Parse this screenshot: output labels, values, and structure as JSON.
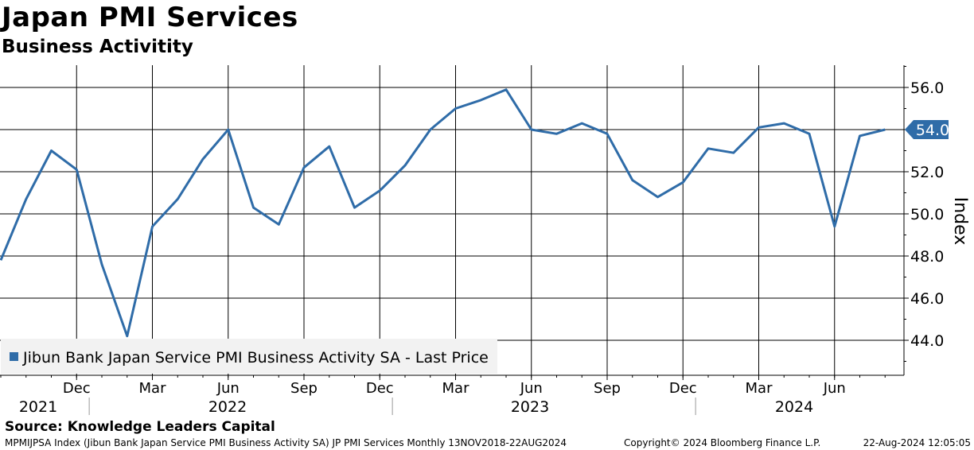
{
  "header": {
    "title": "Japan PMI Services",
    "subtitle": "Business Activitity"
  },
  "chart_data": {
    "type": "line",
    "title": "Japan PMI Services",
    "subtitle": "Business Activitity",
    "ylabel": "Index",
    "ylim": [
      42.4,
      57.2
    ],
    "y_ticks": [
      "44.0",
      "46.0",
      "48.0",
      "50.0",
      "52.0",
      "54.0",
      "56.0"
    ],
    "x_month_ticks": [
      "Dec",
      "Mar",
      "Jun",
      "Sep",
      "Dec",
      "Mar",
      "Jun",
      "Sep",
      "Dec",
      "Mar",
      "Jun"
    ],
    "x_year_labels": [
      "2021",
      "2022",
      "2023",
      "2024"
    ],
    "grid": true,
    "legend_position": "bottom-left",
    "last_value_label": "54.0",
    "series": [
      {
        "name": "Jibun Bank Japan Service PMI Business Activity SA - Last Price",
        "color": "#2f6ca8",
        "x": [
          "2021-09",
          "2021-10",
          "2021-11",
          "2021-12",
          "2022-01",
          "2022-02",
          "2022-03",
          "2022-04",
          "2022-05",
          "2022-06",
          "2022-07",
          "2022-08",
          "2022-09",
          "2022-10",
          "2022-11",
          "2022-12",
          "2023-01",
          "2023-02",
          "2023-03",
          "2023-04",
          "2023-05",
          "2023-06",
          "2023-07",
          "2023-08",
          "2023-09",
          "2023-10",
          "2023-11",
          "2023-12",
          "2024-01",
          "2024-02",
          "2024-03",
          "2024-04",
          "2024-05",
          "2024-06",
          "2024-07",
          "2024-08"
        ],
        "values": [
          47.8,
          50.7,
          53.0,
          52.1,
          47.6,
          44.2,
          49.4,
          50.7,
          52.6,
          54.0,
          50.3,
          49.5,
          52.2,
          53.2,
          50.3,
          51.1,
          52.3,
          54.0,
          55.0,
          55.4,
          55.9,
          54.0,
          53.8,
          54.3,
          53.8,
          51.6,
          50.8,
          51.5,
          53.1,
          52.9,
          54.1,
          54.3,
          53.8,
          49.4,
          53.7,
          54.0
        ]
      }
    ]
  },
  "footer": {
    "source": "Source: Knowledge Leaders Capital",
    "description": "MPMIJPSA Index (Jibun Bank Japan Service PMI Business Activity SA) JP PMI Services  Monthly 13NOV2018-22AUG2024",
    "copyright": "Copyright© 2024 Bloomberg Finance L.P.",
    "timestamp": "22-Aug-2024 12:05:05"
  }
}
